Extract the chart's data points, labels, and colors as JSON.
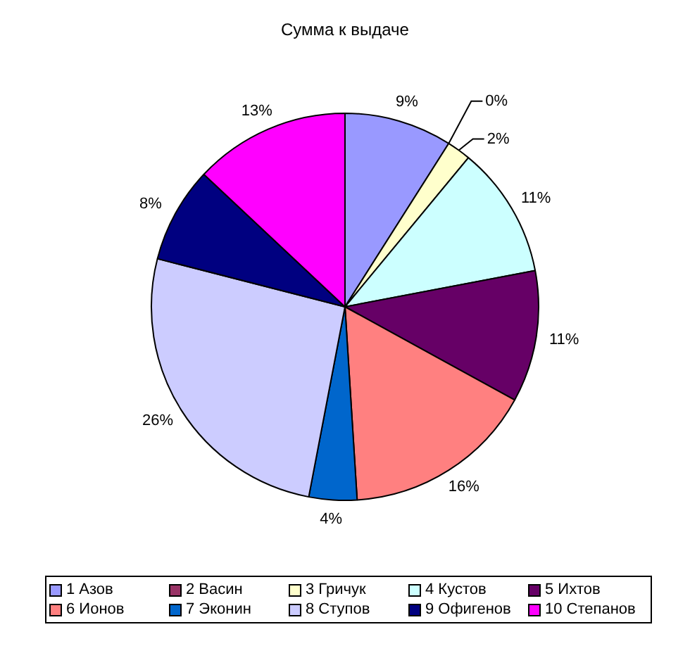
{
  "chart_data": {
    "type": "pie",
    "title": "Сумма к выдаче",
    "categories": [
      "1 Азов",
      "2 Васин",
      "3 Гричук",
      "4 Кустов",
      "5 Ихтов",
      "6 Ионов",
      "7 Эконин",
      "8 Ступов",
      "9 Офигенов",
      "10 Степанов"
    ],
    "values": [
      9,
      0,
      2,
      11,
      11,
      16,
      4,
      26,
      8,
      13
    ],
    "colors": [
      "#9999ff",
      "#993366",
      "#ffffcc",
      "#ccffff",
      "#660066",
      "#ff8080",
      "#0066cc",
      "#ccccff",
      "#000080",
      "#ff00ff"
    ],
    "value_labels": [
      "9%",
      "0%",
      "2%",
      "11%",
      "11%",
      "16%",
      "4%",
      "26%",
      "8%",
      "13%"
    ],
    "legend": "bottom"
  }
}
